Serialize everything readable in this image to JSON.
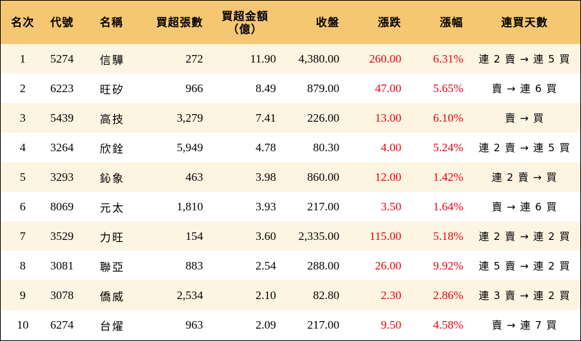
{
  "headers": {
    "rank": "名次",
    "code": "代號",
    "name": "名稱",
    "net_lots": "買超張數",
    "net_amount_1": "買超金額",
    "net_amount_2": "（億）",
    "close": "收盤",
    "change": "漲跌",
    "pct": "漲幅",
    "streak": "連買天數"
  },
  "rows": [
    {
      "rank": "1",
      "code": "5274",
      "name": "信驊",
      "net_lots": "272",
      "net_amount": "11.90",
      "close": "4,380.00",
      "change": "260.00",
      "pct": "6.31%",
      "streak": "連 2 賣 → 連 5 買"
    },
    {
      "rank": "2",
      "code": "6223",
      "name": "旺矽",
      "net_lots": "966",
      "net_amount": "8.49",
      "close": "879.00",
      "change": "47.00",
      "pct": "5.65%",
      "streak": "賣 → 連 6 買"
    },
    {
      "rank": "3",
      "code": "5439",
      "name": "高技",
      "net_lots": "3,279",
      "net_amount": "7.41",
      "close": "226.00",
      "change": "13.00",
      "pct": "6.10%",
      "streak": "賣 → 買"
    },
    {
      "rank": "4",
      "code": "3264",
      "name": "欣銓",
      "net_lots": "5,949",
      "net_amount": "4.78",
      "close": "80.30",
      "change": "4.00",
      "pct": "5.24%",
      "streak": "連 2 賣 → 連 5 買"
    },
    {
      "rank": "5",
      "code": "3293",
      "name": "鈊象",
      "net_lots": "463",
      "net_amount": "3.98",
      "close": "860.00",
      "change": "12.00",
      "pct": "1.42%",
      "streak": "連 2 賣 → 買"
    },
    {
      "rank": "6",
      "code": "8069",
      "name": "元太",
      "net_lots": "1,810",
      "net_amount": "3.93",
      "close": "217.00",
      "change": "3.50",
      "pct": "1.64%",
      "streak": "賣 → 連 6 買"
    },
    {
      "rank": "7",
      "code": "3529",
      "name": "力旺",
      "net_lots": "154",
      "net_amount": "3.60",
      "close": "2,335.00",
      "change": "115.00",
      "pct": "5.18%",
      "streak": "連 2 賣 → 連 2 買"
    },
    {
      "rank": "8",
      "code": "3081",
      "name": "聯亞",
      "net_lots": "883",
      "net_amount": "2.54",
      "close": "288.00",
      "change": "26.00",
      "pct": "9.92%",
      "streak": "連 5 賣 → 連 2 買"
    },
    {
      "rank": "9",
      "code": "3078",
      "name": "僑威",
      "net_lots": "2,534",
      "net_amount": "2.10",
      "close": "82.80",
      "change": "2.30",
      "pct": "2.86%",
      "streak": "連 3 賣 → 連 2 買"
    },
    {
      "rank": "10",
      "code": "6274",
      "name": "台燿",
      "net_lots": "963",
      "net_amount": "2.09",
      "close": "217.00",
      "change": "9.50",
      "pct": "4.58%",
      "streak": "賣 → 連 7 買"
    }
  ],
  "colors": {
    "header_bg": "#f6c772",
    "stripe_bg": "#fdf4e1",
    "up_red": "#e8000f"
  }
}
